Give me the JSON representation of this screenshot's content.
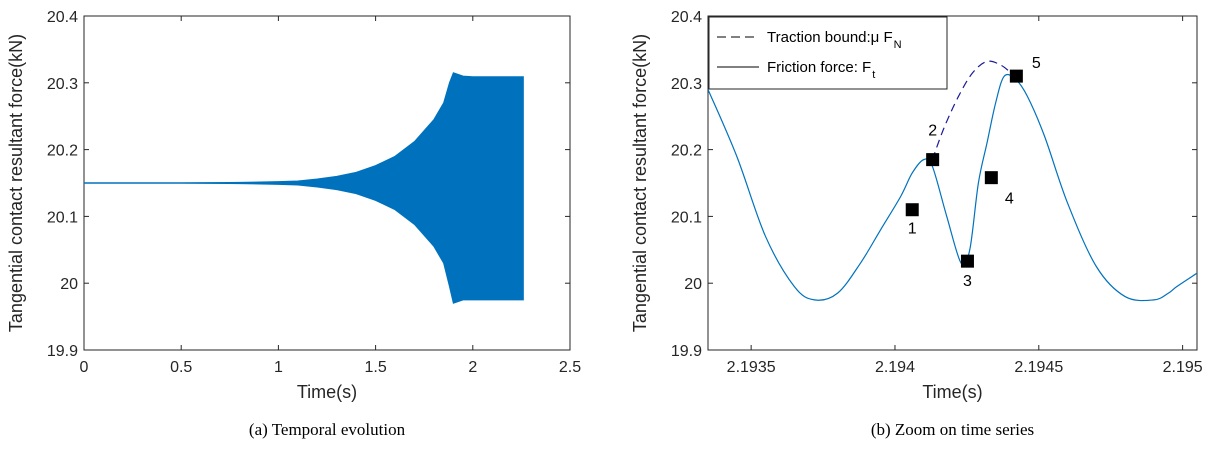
{
  "chart_data": [
    {
      "type": "line",
      "panel": "a",
      "caption": "(a)  Temporal evolution",
      "xlabel": "Time(s)",
      "ylabel": "Tangential contact resultant force(kN)",
      "xlim": [
        0,
        2.5
      ],
      "ylim": [
        19.9,
        20.4
      ],
      "xticks": [
        "0",
        "0.5",
        "1",
        "1.5",
        "2",
        "2.5"
      ],
      "xtick_values": [
        0,
        0.5,
        1,
        1.5,
        2,
        2.5
      ],
      "yticks": [
        "19.9",
        "20",
        "20.1",
        "20.2",
        "20.3",
        "20.4"
      ],
      "ytick_values": [
        19.9,
        20.0,
        20.1,
        20.2,
        20.3,
        20.4
      ],
      "series": [
        {
          "color": "#0072BD",
          "style": "oscillation envelope",
          "x": [
            0,
            0.5,
            0.8,
            1.0,
            1.1,
            1.2,
            1.3,
            1.4,
            1.5,
            1.6,
            1.7,
            1.8,
            1.85,
            1.88,
            1.9,
            1.95,
            2.0,
            2.1,
            2.2,
            2.26
          ],
          "upper": [
            20.15,
            20.15,
            20.151,
            20.152,
            20.153,
            20.156,
            20.16,
            20.166,
            20.176,
            20.19,
            20.212,
            20.245,
            20.27,
            20.3,
            20.315,
            20.31,
            20.309,
            20.309,
            20.309,
            20.309
          ],
          "lower": [
            20.15,
            20.15,
            20.149,
            20.148,
            20.147,
            20.144,
            20.14,
            20.134,
            20.124,
            20.11,
            20.088,
            20.055,
            20.03,
            19.995,
            19.97,
            19.975,
            19.975,
            19.975,
            19.975,
            19.975
          ]
        }
      ],
      "grid": false
    },
    {
      "type": "line",
      "panel": "b",
      "caption": "(b)  Zoom on time series",
      "xlabel": "Time(s)",
      "ylabel": "Tangential contact resultant force(kN)",
      "xlim": [
        2.19335,
        2.19505
      ],
      "ylim": [
        19.9,
        20.4
      ],
      "xticks": [
        "2.1935",
        "2.194",
        "2.1945",
        "2.195"
      ],
      "xtick_values": [
        2.1935,
        2.194,
        2.1945,
        2.195
      ],
      "yticks": [
        "19.9",
        "20",
        "20.1",
        "20.2",
        "20.3",
        "20.4"
      ],
      "ytick_values": [
        19.9,
        20.0,
        20.1,
        20.2,
        20.3,
        20.4
      ],
      "legend": {
        "position": "top-left",
        "entries": [
          {
            "label": "Traction bound:μ F",
            "sub": "N",
            "style": "dashed"
          },
          {
            "label": "Friction force: F",
            "sub": "t",
            "style": "solid"
          }
        ]
      },
      "series": [
        {
          "name": "Friction force: F_t",
          "color": "#0072BD",
          "style": "solid",
          "x": [
            2.19335,
            2.19345,
            2.19355,
            2.19365,
            2.19372,
            2.1938,
            2.19388,
            2.19395,
            2.19402,
            2.19406,
            2.1941,
            2.19413,
            2.19418,
            2.19423,
            2.19426,
            2.19429,
            2.19432,
            2.19435,
            2.19438,
            2.19442,
            2.19446,
            2.19452,
            2.1946,
            2.1947,
            2.1948,
            2.1949,
            2.19495,
            2.19498,
            2.19505
          ],
          "y": [
            20.29,
            20.19,
            20.07,
            19.995,
            19.975,
            19.985,
            20.03,
            20.08,
            20.13,
            20.165,
            20.185,
            20.175,
            20.1,
            20.03,
            20.05,
            20.15,
            20.21,
            20.27,
            20.31,
            20.305,
            20.28,
            20.22,
            20.12,
            20.025,
            19.98,
            19.975,
            19.985,
            19.995,
            20.015
          ]
        },
        {
          "name": "Traction bound: μ F_N",
          "color": "#1a1a99",
          "style": "dashed",
          "x": [
            2.19413,
            2.19417,
            2.19422,
            2.19427,
            2.19432,
            2.19437,
            2.19441
          ],
          "y": [
            20.185,
            20.232,
            20.279,
            20.315,
            20.332,
            20.326,
            20.312
          ]
        }
      ],
      "markers": [
        {
          "label": "1",
          "x": 2.19406,
          "y": 20.11
        },
        {
          "label": "2",
          "x": 2.194131,
          "y": 20.185
        },
        {
          "label": "3",
          "x": 2.194252,
          "y": 20.033
        },
        {
          "label": "4",
          "x": 2.194335,
          "y": 20.158
        },
        {
          "label": "5",
          "x": 2.194422,
          "y": 20.31
        }
      ],
      "grid": false
    }
  ]
}
